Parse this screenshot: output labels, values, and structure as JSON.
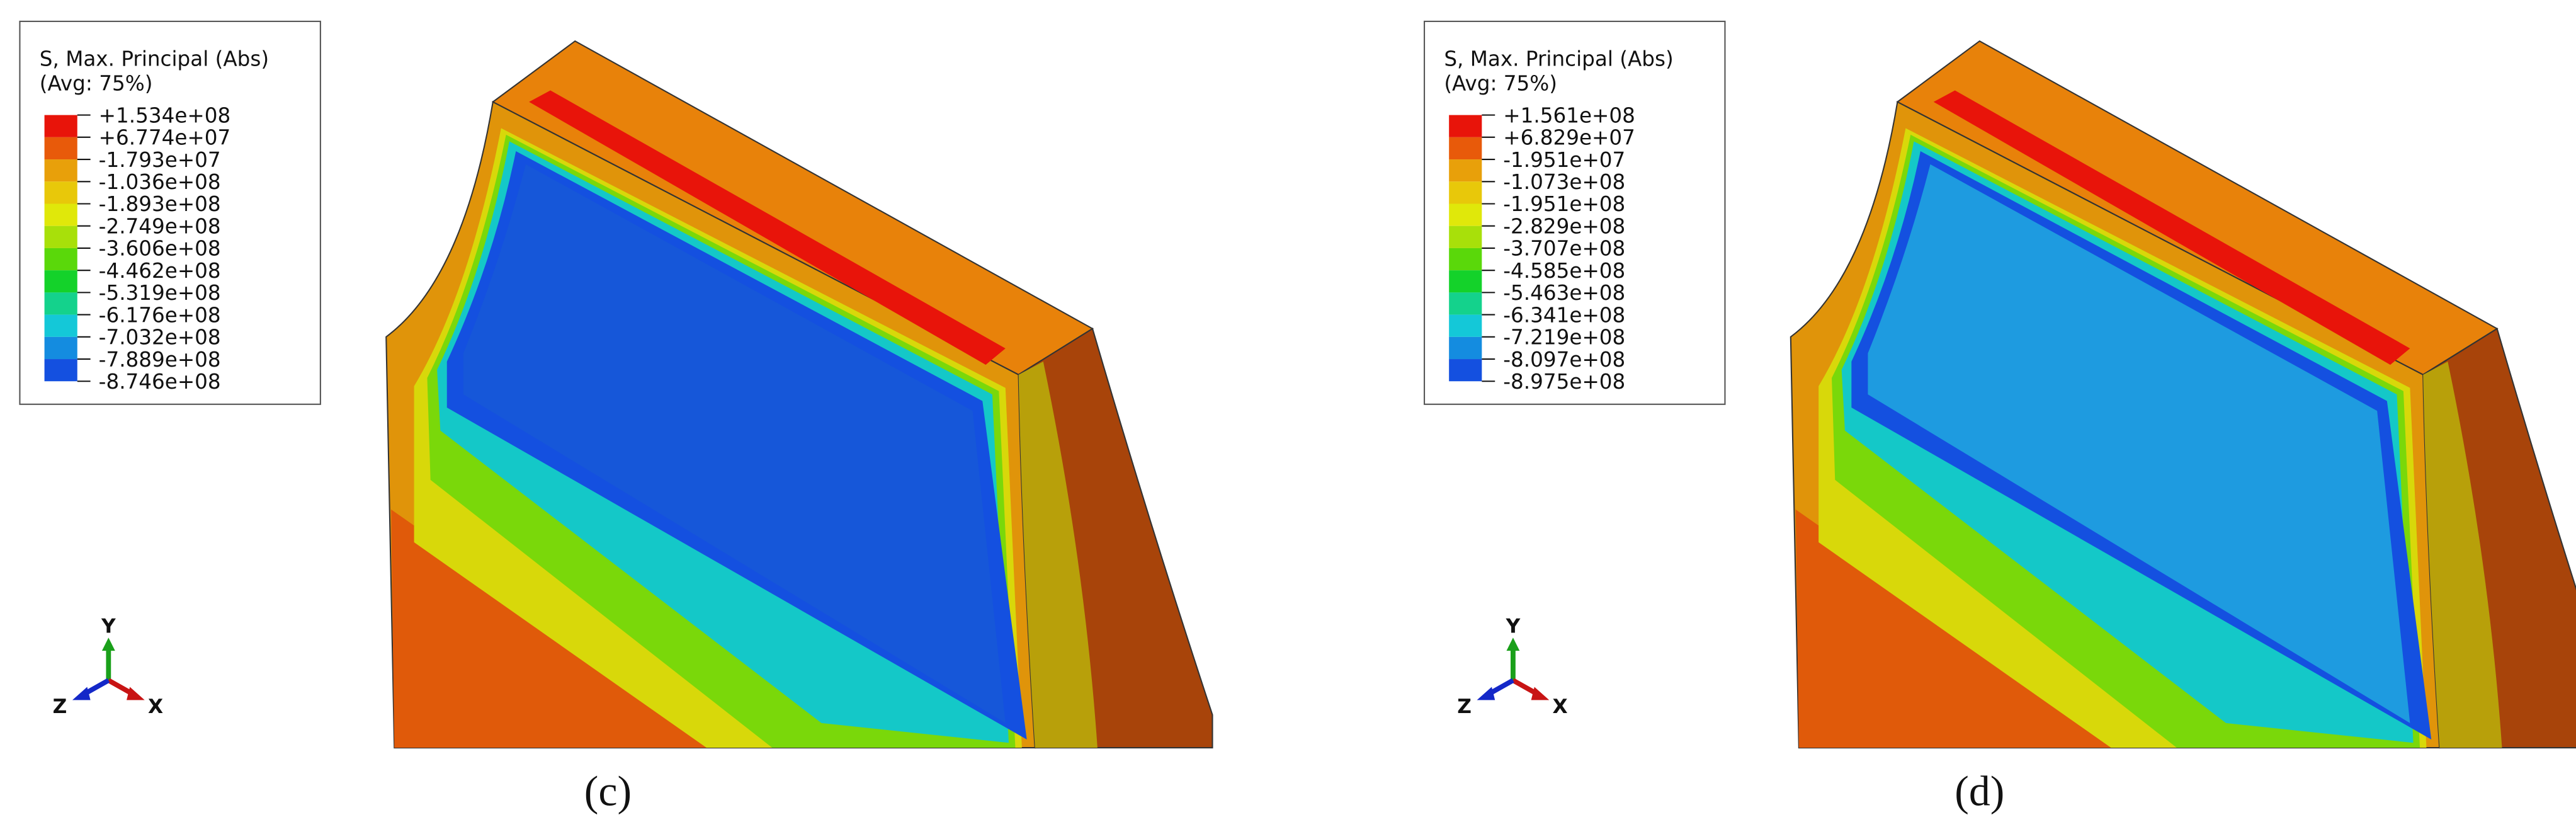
{
  "panels": [
    {
      "legend": {
        "title": "S, Max. Principal (Abs)",
        "subtitle": "(Avg: 75%)",
        "levels": [
          "+1.534e+08",
          "+6.774e+07",
          "-1.793e+07",
          "-1.036e+08",
          "-1.893e+08",
          "-2.749e+08",
          "-3.606e+08",
          "-4.462e+08",
          "-5.319e+08",
          "-6.176e+08",
          "-7.032e+08",
          "-7.889e+08",
          "-8.746e+08"
        ],
        "colors": [
          "#e8140a",
          "#e85a0a",
          "#e8a00a",
          "#e8c80a",
          "#e0e80a",
          "#a8e00a",
          "#5ad80a",
          "#14d22a",
          "#14d28c",
          "#14c8d8",
          "#148ce0",
          "#1450e0"
        ]
      },
      "triad": {
        "y": "Y",
        "z": "Z",
        "x": "X"
      },
      "caption": "(c)"
    },
    {
      "legend": {
        "title": "S, Max. Principal (Abs)",
        "subtitle": "(Avg: 75%)",
        "levels": [
          "+1.561e+08",
          "+6.829e+07",
          "-1.951e+07",
          "-1.073e+08",
          "-1.951e+08",
          "-2.829e+08",
          "-3.707e+08",
          "-4.585e+08",
          "-5.463e+08",
          "-6.341e+08",
          "-7.219e+08",
          "-8.097e+08",
          "-8.975e+08"
        ],
        "colors": [
          "#e8140a",
          "#e85a0a",
          "#e8a00a",
          "#e8c80a",
          "#e0e80a",
          "#a8e00a",
          "#5ad80a",
          "#14d22a",
          "#14d28c",
          "#14c8d8",
          "#148ce0",
          "#1450e0"
        ]
      },
      "triad": {
        "y": "Y",
        "z": "Z",
        "x": "X"
      },
      "caption": "(d)"
    }
  ]
}
